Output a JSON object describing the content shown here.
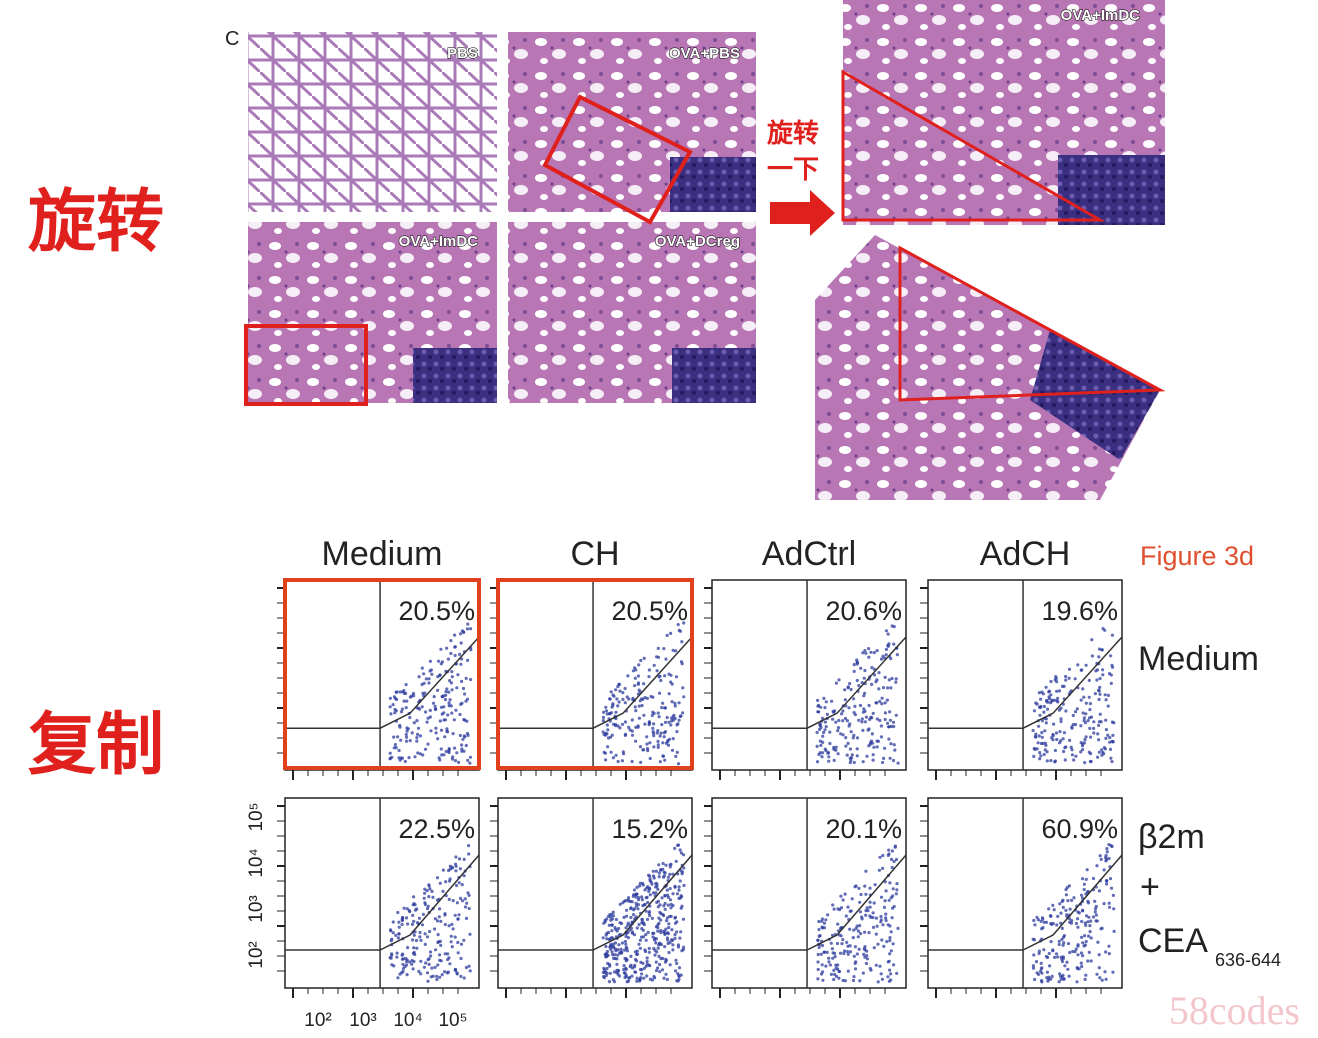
{
  "left_labels": [
    "旋转",
    "复制"
  ],
  "histology": {
    "panel_letter": "C",
    "panels": [
      "PBS",
      "OVA+PBS",
      "OVA+ImDC",
      "OVA+DCreg"
    ],
    "arrow_note": [
      "旋转",
      "一下"
    ],
    "rotated_label": "OVA+ImDC"
  },
  "flow": {
    "columns": [
      "Medium",
      "CH",
      "AdCtrl",
      "AdCH"
    ],
    "figure_label": "Figure 3d",
    "rows": [
      {
        "label": [
          "Medium"
        ],
        "percents": [
          "20.5%",
          "20.5%",
          "20.6%",
          "19.6%"
        ]
      },
      {
        "label": [
          "β2m",
          "+",
          "CEA"
        ],
        "subscript": "636-644",
        "percents": [
          "22.5%",
          "15.2%",
          "20.1%",
          "60.9%"
        ]
      }
    ],
    "y_ticks": [
      "10²",
      "10³",
      "10⁴",
      "10⁵"
    ],
    "x_ticks": [
      "10²",
      "10³",
      "10⁴",
      "10⁵"
    ]
  },
  "watermark": "58codes"
}
